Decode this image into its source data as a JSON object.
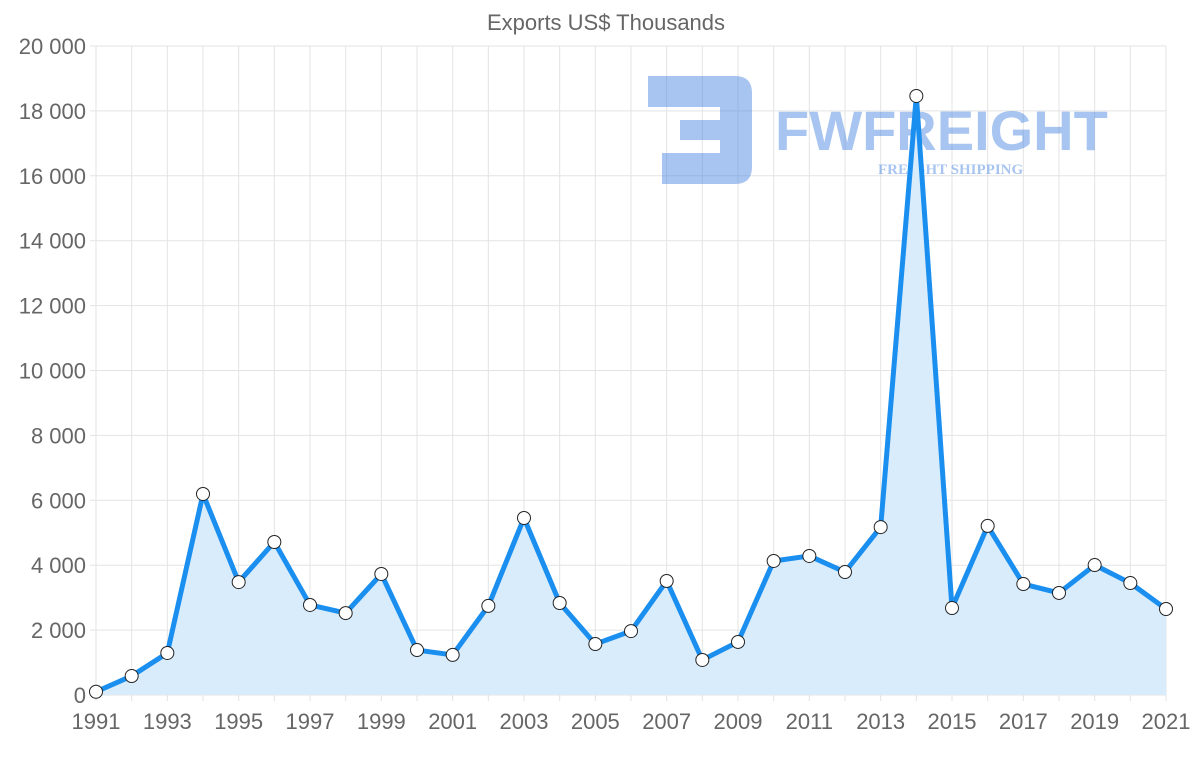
{
  "chart_data": {
    "type": "line",
    "title": "Exports US$ Thousands",
    "xlabel": "",
    "ylabel": "",
    "x": [
      1991,
      1992,
      1993,
      1994,
      1995,
      1996,
      1997,
      1998,
      1999,
      2000,
      2001,
      2002,
      2003,
      2004,
      2005,
      2006,
      2007,
      2008,
      2009,
      2010,
      2011,
      2012,
      2013,
      2014,
      2015,
      2016,
      2017,
      2018,
      2019,
      2020,
      2021
    ],
    "series": [
      {
        "name": "Exports US$ Thousands",
        "values": [
          100,
          585,
          1295,
          6195,
          3480,
          4715,
          2775,
          2525,
          3730,
          1385,
          1235,
          2745,
          5455,
          2835,
          1570,
          1970,
          3515,
          1080,
          1635,
          4130,
          4285,
          3790,
          5175,
          18460,
          2680,
          5210,
          3420,
          3145,
          4005,
          3450,
          2650
        ]
      }
    ],
    "ylim": [
      0,
      20000
    ],
    "yticks": [
      "0",
      "2 000",
      "4 000",
      "6 000",
      "8 000",
      "10 000",
      "12 000",
      "14 000",
      "16 000",
      "18 000",
      "20 000"
    ],
    "xticks": [
      "1991",
      "1993",
      "1995",
      "1997",
      "1999",
      "2001",
      "2003",
      "2005",
      "2007",
      "2009",
      "2011",
      "2013",
      "2015",
      "2017",
      "2019",
      "2021"
    ],
    "grid": true,
    "filled": true,
    "colors": {
      "line": "#1a8ff0",
      "fill": "#d9ecfc",
      "grid": "#e3e3e3"
    }
  },
  "watermark": {
    "brand": "FWFREIGHT",
    "tagline": "FREIGHT SHIPPING"
  }
}
